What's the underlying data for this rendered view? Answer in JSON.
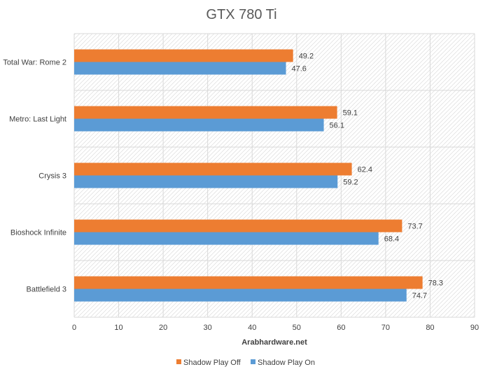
{
  "chart_data": {
    "type": "bar",
    "orientation": "horizontal",
    "title": "GTX 780 Ti",
    "xlabel": "Arabhardware.net",
    "ylabel": "",
    "categories": [
      "Total War: Rome 2",
      "Metro: Last Light",
      "Crysis 3",
      "Bioshock Infinite",
      "Battlefield 3"
    ],
    "series": [
      {
        "name": "Shadow Play Off",
        "color": "#ED7D31",
        "values": [
          49.2,
          59.1,
          62.4,
          73.7,
          78.3
        ]
      },
      {
        "name": "Shadow Play On",
        "color": "#5B9BD5",
        "values": [
          47.6,
          56.1,
          59.2,
          68.4,
          74.7
        ]
      }
    ],
    "xlim": [
      0,
      90
    ],
    "xticks": [
      0,
      10,
      20,
      30,
      40,
      50,
      60,
      70,
      80,
      90
    ],
    "grid": true,
    "legend": "bottom"
  }
}
